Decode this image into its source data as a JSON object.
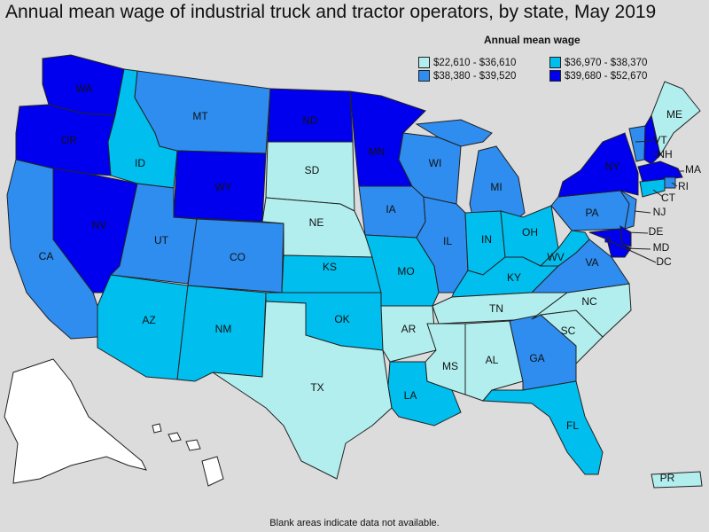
{
  "title": "Annual mean wage of industrial truck and tractor operators, by state, May 2019",
  "footnote": "Blank areas indicate data not available.",
  "legend": {
    "title": "Annual mean wage",
    "classes": [
      {
        "label": "$22,610 - $36,610",
        "color": "#b2eeee"
      },
      {
        "label": "$36,970 - $38,370",
        "color": "#00bfee"
      },
      {
        "label": "$38,380 - $39,520",
        "color": "#2e8def"
      },
      {
        "label": "$39,680 - $52,670",
        "color": "#0000ee"
      }
    ]
  },
  "no_data_color": "#ffffff",
  "states": {
    "WA": 3,
    "OR": 3,
    "CA": 2,
    "NV": 3,
    "ID": 1,
    "MT": 2,
    "WY": 3,
    "UT": 2,
    "CO": 2,
    "AZ": 1,
    "NM": 1,
    "ND": 3,
    "SD": 0,
    "NE": 0,
    "KS": 1,
    "OK": 1,
    "TX": 0,
    "MN": 3,
    "IA": 2,
    "MO": 1,
    "AR": 0,
    "LA": 1,
    "WI": 2,
    "IL": 2,
    "MI": 2,
    "IN": 1,
    "OH": 1,
    "KY": 1,
    "TN": 0,
    "MS": 0,
    "AL": 0,
    "GA": 2,
    "FL": 1,
    "SC": 0,
    "NC": 0,
    "VA": 2,
    "WV": 1,
    "PA": 2,
    "NY": 3,
    "VT": 2,
    "NH": 3,
    "ME": 0,
    "MA": 3,
    "RI": 2,
    "CT": 1,
    "NJ": 2,
    "DE": 3,
    "MD": 3,
    "DC": 3,
    "PR": 0,
    "AK": -1,
    "HI": -1
  },
  "labels": {
    "WA": "WA",
    "OR": "OR",
    "CA": "CA",
    "NV": "NV",
    "ID": "ID",
    "MT": "MT",
    "WY": "WY",
    "UT": "UT",
    "CO": "CO",
    "AZ": "AZ",
    "NM": "NM",
    "ND": "ND",
    "SD": "SD",
    "NE": "NE",
    "KS": "KS",
    "OK": "OK",
    "TX": "TX",
    "MN": "MN",
    "IA": "IA",
    "MO": "MO",
    "AR": "AR",
    "LA": "LA",
    "WI": "WI",
    "IL": "IL",
    "MI": "MI",
    "IN": "IN",
    "OH": "OH",
    "KY": "KY",
    "TN": "TN",
    "MS": "MS",
    "AL": "AL",
    "GA": "GA",
    "FL": "FL",
    "SC": "SC",
    "NC": "NC",
    "VA": "VA",
    "WV": "WV",
    "PA": "PA",
    "NY": "NY",
    "VT": "VT",
    "NH": "NH",
    "ME": "ME",
    "MA": "MA",
    "RI": "RI",
    "CT": "CT",
    "NJ": "NJ",
    "DE": "DE",
    "MD": "MD",
    "DC": "DC",
    "PR": "PR"
  }
}
